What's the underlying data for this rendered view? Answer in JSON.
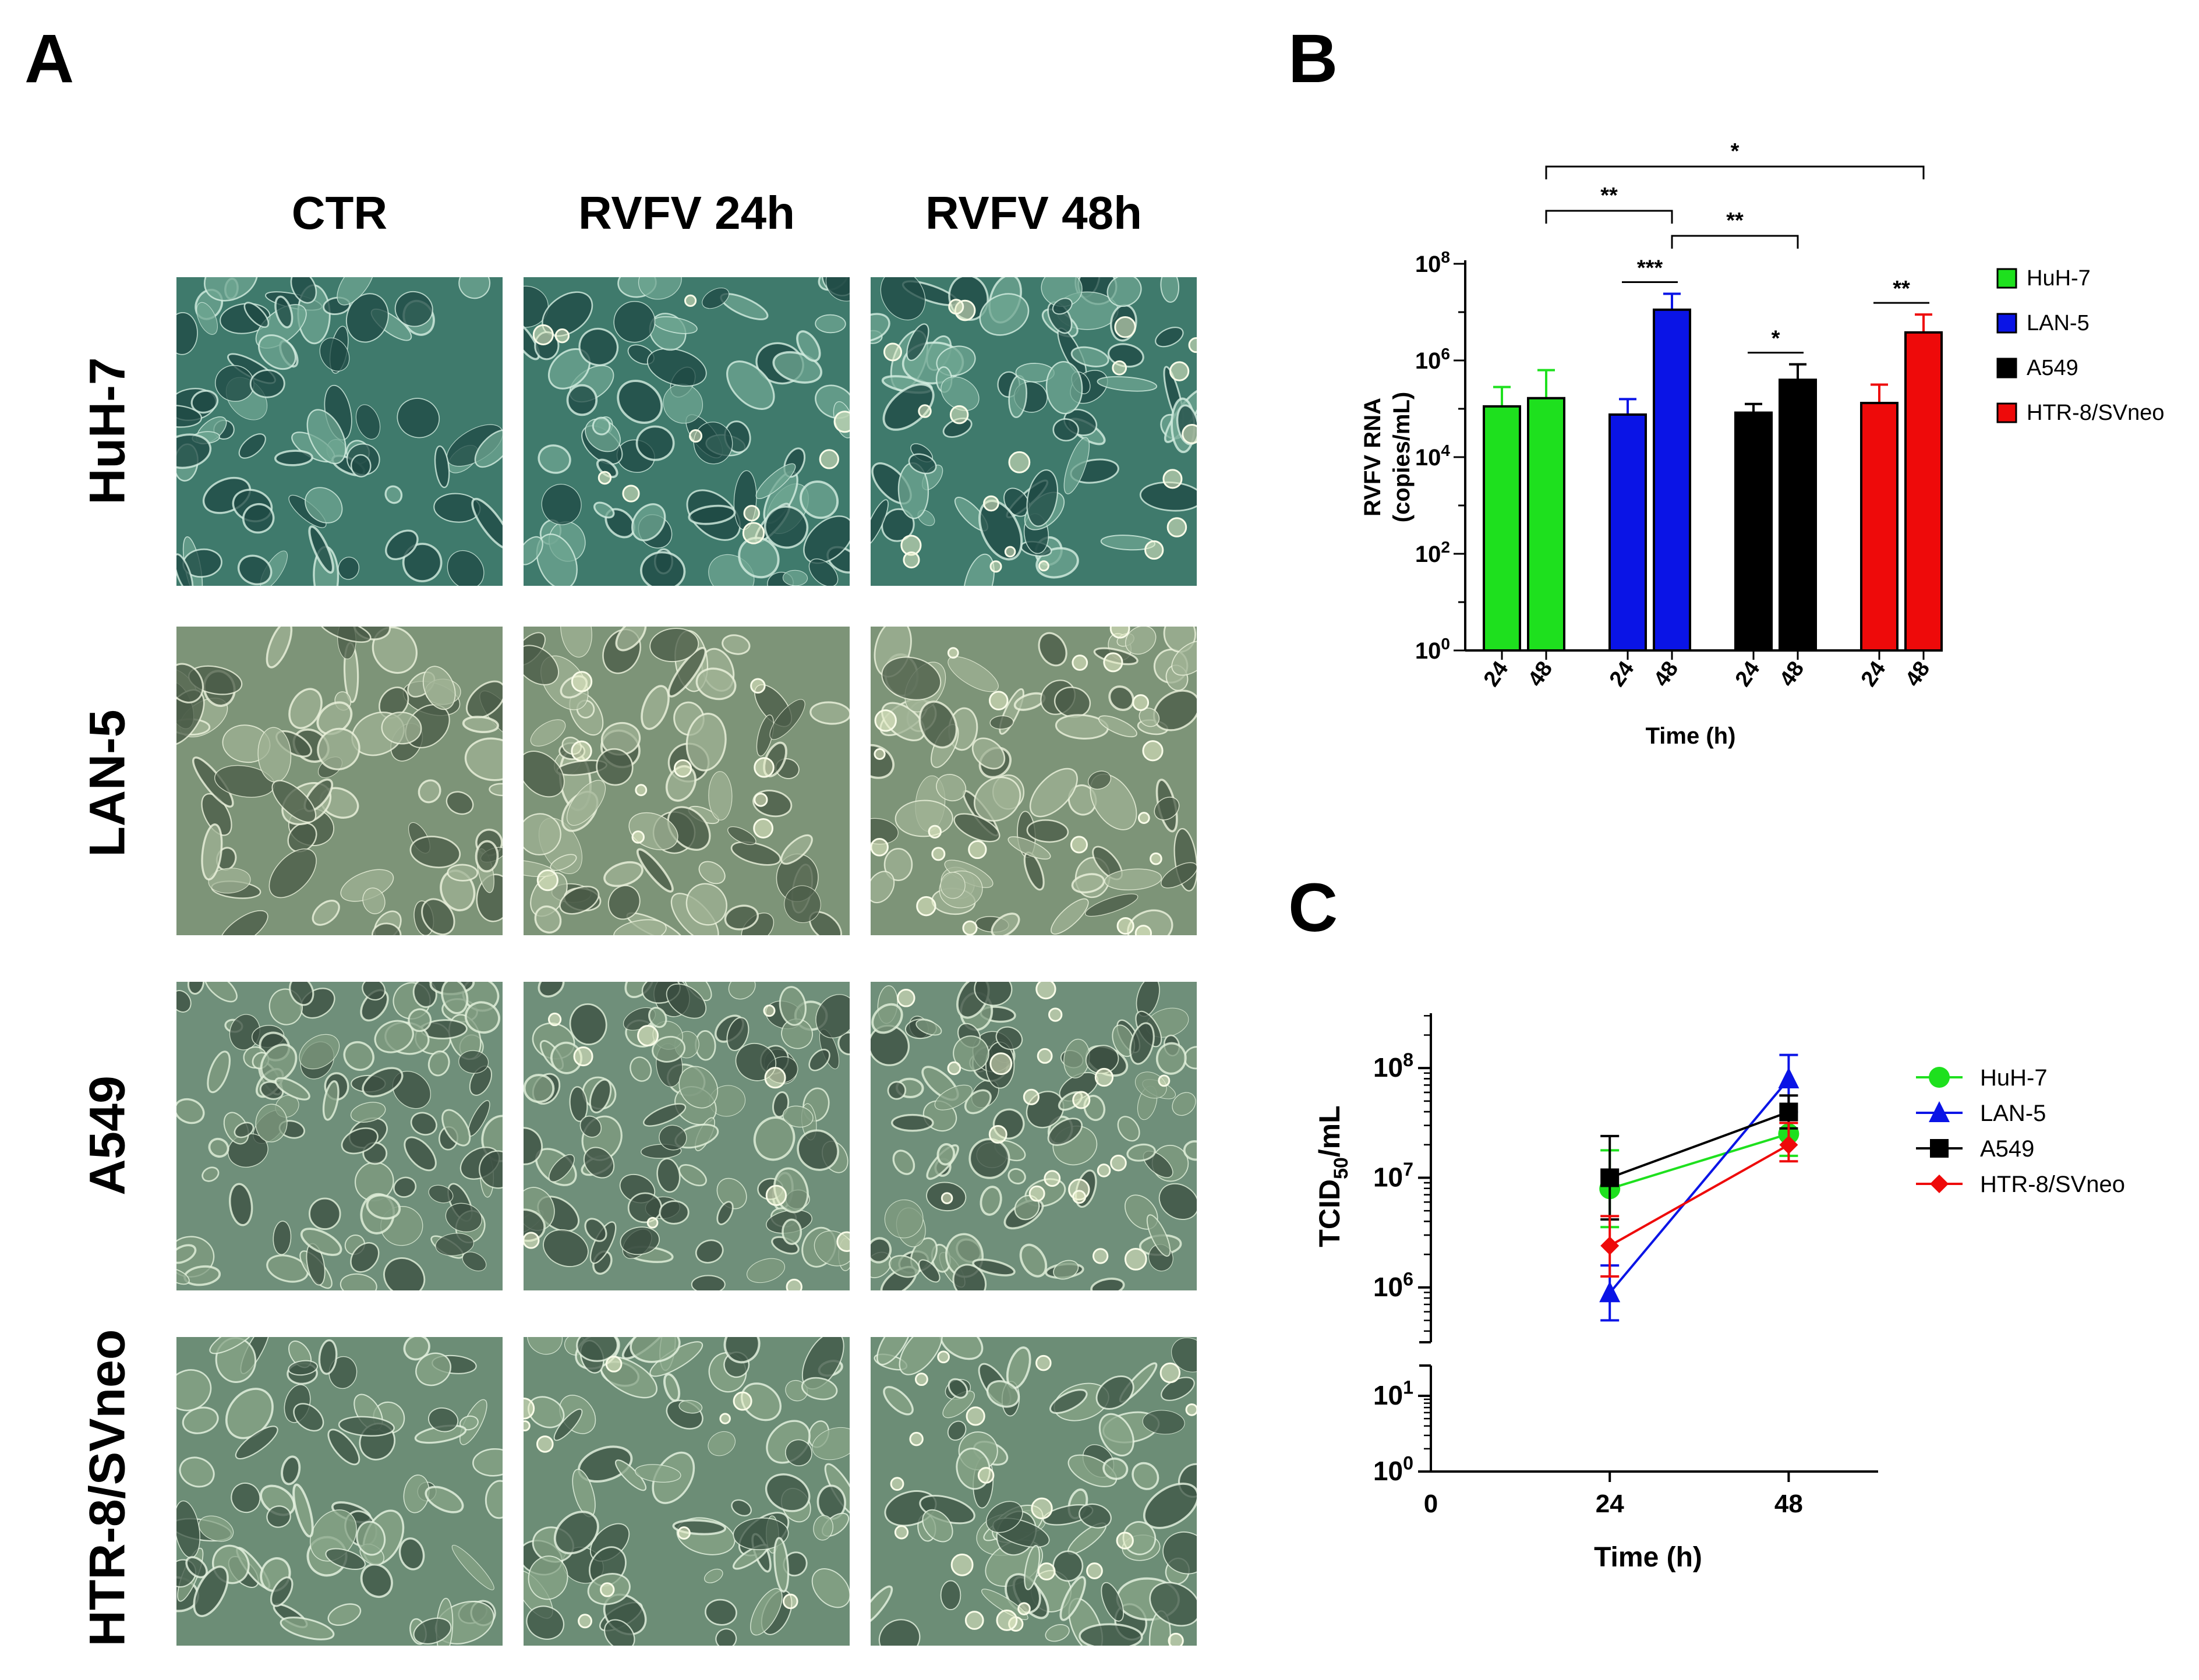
{
  "panels": {
    "a": "A",
    "b": "B",
    "c": "C"
  },
  "micrographs": {
    "columns": [
      "CTR",
      "RVFV 24h",
      "RVFV 48h"
    ],
    "rows": [
      "HuH-7",
      "LAN-5",
      "A549",
      "HTR-8/SVneo"
    ]
  },
  "colors": {
    "HuH-7": "#1ee01e",
    "LAN-5": "#0a14e6",
    "A549": "#000000",
    "HTR-8/SVneo": "#ee0a0a"
  },
  "chart_data": [
    {
      "type": "bar",
      "panel": "B",
      "scale": "log10",
      "ylabel_line1": "RVFV RNA",
      "ylabel_line2": "(copies/mL)",
      "xlabel": "Time (h)",
      "ylim_log10": [
        0,
        8
      ],
      "yticks": [
        {
          "base": "10",
          "exp": "0",
          "v": 0
        },
        {
          "base": "10",
          "exp": "2",
          "v": 2
        },
        {
          "base": "10",
          "exp": "4",
          "v": 4
        },
        {
          "base": "10",
          "exp": "6",
          "v": 6
        },
        {
          "base": "10",
          "exp": "8",
          "v": 8
        }
      ],
      "series": [
        {
          "name": "HuH-7",
          "color": "#1ee01e",
          "times": [
            "24",
            "48"
          ],
          "log_values": [
            5.05,
            5.22
          ],
          "log_err": [
            5.45,
            5.8
          ]
        },
        {
          "name": "LAN-5",
          "color": "#0a14e6",
          "times": [
            "24",
            "48"
          ],
          "log_values": [
            4.88,
            7.05
          ],
          "log_err": [
            5.2,
            7.38
          ]
        },
        {
          "name": "A549",
          "color": "#000000",
          "times": [
            "24",
            "48"
          ],
          "log_values": [
            4.92,
            5.6
          ],
          "log_err": [
            5.1,
            5.92
          ]
        },
        {
          "name": "HTR-8/SVneo",
          "color": "#ee0a0a",
          "times": [
            "24",
            "48"
          ],
          "log_values": [
            5.12,
            6.58
          ],
          "log_err": [
            5.5,
            6.95
          ]
        }
      ],
      "significance": [
        {
          "label": "*",
          "from": [
            0,
            1
          ],
          "to": [
            3,
            1
          ],
          "level": 1
        },
        {
          "label": "**",
          "from": [
            0,
            1
          ],
          "to": [
            1,
            1
          ],
          "level": 2
        },
        {
          "label": "**",
          "from": [
            1,
            1
          ],
          "to": [
            2,
            1
          ],
          "level": 3
        },
        {
          "label": "***",
          "from": [
            1,
            0
          ],
          "to": [
            1,
            1
          ],
          "level": 0
        },
        {
          "label": "*",
          "from": [
            2,
            0
          ],
          "to": [
            2,
            1
          ],
          "level": 0
        },
        {
          "label": "**",
          "from": [
            3,
            0
          ],
          "to": [
            3,
            1
          ],
          "level": 0
        }
      ]
    },
    {
      "type": "line",
      "panel": "C",
      "scale": "log10-broken",
      "ylabel_main": "TCID",
      "ylabel_sub": "50",
      "ylabel_tail": "/mL",
      "xlabel": "Time (h)",
      "x_ticks": [
        "0",
        "24",
        "48"
      ],
      "x_values": [
        0,
        24,
        48
      ],
      "xlim": [
        0,
        60
      ],
      "upper_ylim_log10": [
        5.5,
        8.5
      ],
      "upper_yticks": [
        {
          "base": "10",
          "exp": "6",
          "v": 6
        },
        {
          "base": "10",
          "exp": "7",
          "v": 7
        },
        {
          "base": "10",
          "exp": "8",
          "v": 8
        }
      ],
      "lower_ylim_log10": [
        0,
        1.4
      ],
      "lower_yticks": [
        {
          "base": "10",
          "exp": "0",
          "v": 0
        },
        {
          "base": "10",
          "exp": "1",
          "v": 1
        }
      ],
      "series": [
        {
          "name": "HuH-7",
          "color": "#1ee01e",
          "marker": "circle",
          "x": [
            24,
            48
          ],
          "log_values": [
            6.9,
            7.4
          ],
          "log_err_hi": [
            7.25,
            7.6
          ],
          "log_err_lo": [
            6.55,
            7.2
          ]
        },
        {
          "name": "LAN-5",
          "color": "#0a14e6",
          "marker": "triangle",
          "x": [
            24,
            48
          ],
          "log_values": [
            5.95,
            7.9
          ],
          "log_err_hi": [
            6.2,
            8.12
          ],
          "log_err_lo": [
            5.7,
            7.6
          ]
        },
        {
          "name": "A549",
          "color": "#000000",
          "marker": "square",
          "x": [
            24,
            48
          ],
          "log_values": [
            7.0,
            7.6
          ],
          "log_err_hi": [
            7.38,
            7.75
          ],
          "log_err_lo": [
            6.62,
            7.45
          ]
        },
        {
          "name": "HTR-8/SVneo",
          "color": "#ee0a0a",
          "marker": "diamond",
          "x": [
            24,
            48
          ],
          "log_values": [
            6.38,
            7.3
          ],
          "log_err_hi": [
            6.65,
            7.5
          ],
          "log_err_lo": [
            6.1,
            7.15
          ]
        }
      ]
    }
  ]
}
